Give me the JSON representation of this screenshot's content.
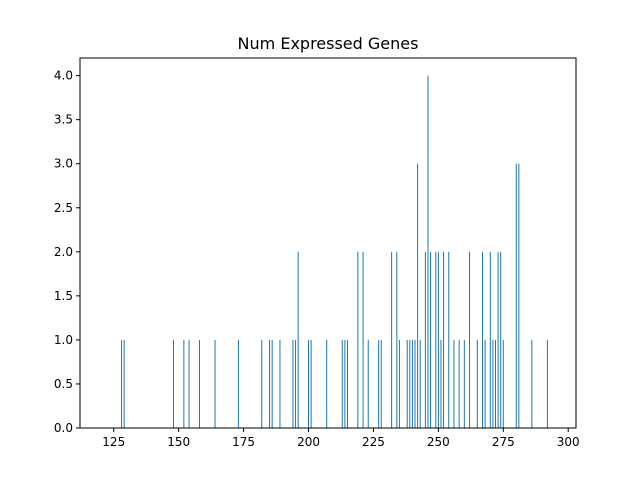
{
  "chart_data": {
    "type": "bar",
    "title": "Num Expressed Genes",
    "xlabel": "",
    "ylabel": "",
    "xlim": [
      112,
      303
    ],
    "ylim": [
      0,
      4.2
    ],
    "xticks": [
      125,
      150,
      175,
      200,
      225,
      250,
      275,
      300
    ],
    "yticks": [
      0.0,
      0.5,
      1.0,
      1.5,
      2.0,
      2.5,
      3.0,
      3.5,
      4.0
    ],
    "xtick_labels": [
      "125",
      "150",
      "175",
      "200",
      "225",
      "250",
      "275",
      "300"
    ],
    "ytick_labels": [
      "0.0",
      "0.5",
      "1.0",
      "1.5",
      "2.0",
      "2.5",
      "3.0",
      "3.5",
      "4.0"
    ],
    "bar_color": "#1f77b4",
    "grid": false,
    "x": [
      128,
      129,
      148,
      152,
      154,
      158,
      164,
      173,
      182,
      185,
      186,
      189,
      194,
      195,
      196,
      200,
      201,
      207,
      213,
      214,
      215,
      219,
      221,
      223,
      227,
      228,
      232,
      234,
      235,
      238,
      239,
      240,
      241,
      242,
      243,
      245,
      246,
      247,
      249,
      250,
      251,
      252,
      254,
      256,
      258,
      260,
      262,
      265,
      267,
      268,
      270,
      271,
      272,
      273,
      274,
      275,
      280,
      281,
      286,
      292
    ],
    "values": [
      1,
      1,
      1,
      1,
      1,
      1,
      1,
      1,
      1,
      1,
      1,
      1,
      1,
      1,
      2,
      1,
      1,
      1,
      1,
      1,
      1,
      2,
      2,
      1,
      1,
      1,
      2,
      2,
      1,
      1,
      1,
      1,
      1,
      3,
      1,
      2,
      4,
      2,
      2,
      2,
      1,
      2,
      2,
      1,
      1,
      1,
      2,
      1,
      2,
      1,
      2,
      1,
      1,
      2,
      2,
      1,
      3,
      3,
      1,
      1
    ]
  }
}
